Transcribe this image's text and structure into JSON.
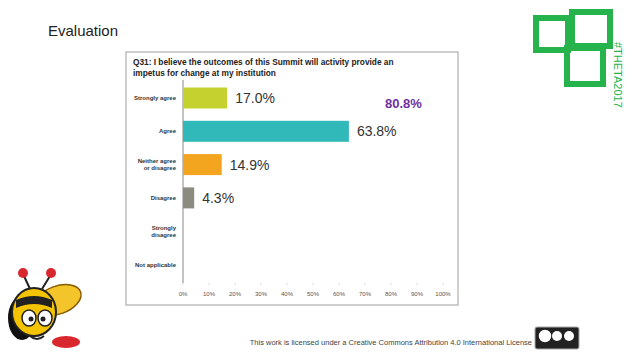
{
  "page": {
    "title": "Evaluation",
    "hashtag": "#THETA2017",
    "license": "This work is licensed under a Creative Commons Attribution 4.0 International License"
  },
  "chart_data": {
    "type": "bar",
    "orientation": "horizontal",
    "title": "Q31: I believe the outcomes of this Summit will activity provide an impetus for change at my institution",
    "categories": [
      "Strongly agree",
      "Agree",
      "Neither agree or disagree",
      "Disagree",
      "Strongly disagree",
      "Not applicable"
    ],
    "values": [
      17.0,
      63.8,
      14.9,
      4.3,
      0,
      0
    ],
    "value_labels": [
      "17.0%",
      "63.8%",
      "14.9%",
      "4.3%",
      null,
      null
    ],
    "data_labels": true,
    "colors": [
      "#c5d12f",
      "#31b8b8",
      "#f4a51f",
      "#8b8b80",
      "#8b8b80",
      "#8b8b80"
    ],
    "xlim": [
      0,
      100
    ],
    "xticks": [
      {
        "value": 0,
        "label": "0%"
      },
      {
        "value": 10,
        "label": "10%"
      },
      {
        "value": 20,
        "label": "20%"
      },
      {
        "value": 30,
        "label": "30%"
      },
      {
        "value": 40,
        "label": "40%"
      },
      {
        "value": 50,
        "label": "50%"
      },
      {
        "value": 60,
        "label": "60%"
      },
      {
        "value": 70,
        "label": "70%"
      },
      {
        "value": 80,
        "label": "80%"
      },
      {
        "value": 90,
        "label": "90%"
      },
      {
        "value": 100,
        "label": "100%"
      }
    ],
    "grid": false,
    "annotations": [
      {
        "text": "80.8%",
        "color": "#7030a0"
      }
    ]
  }
}
